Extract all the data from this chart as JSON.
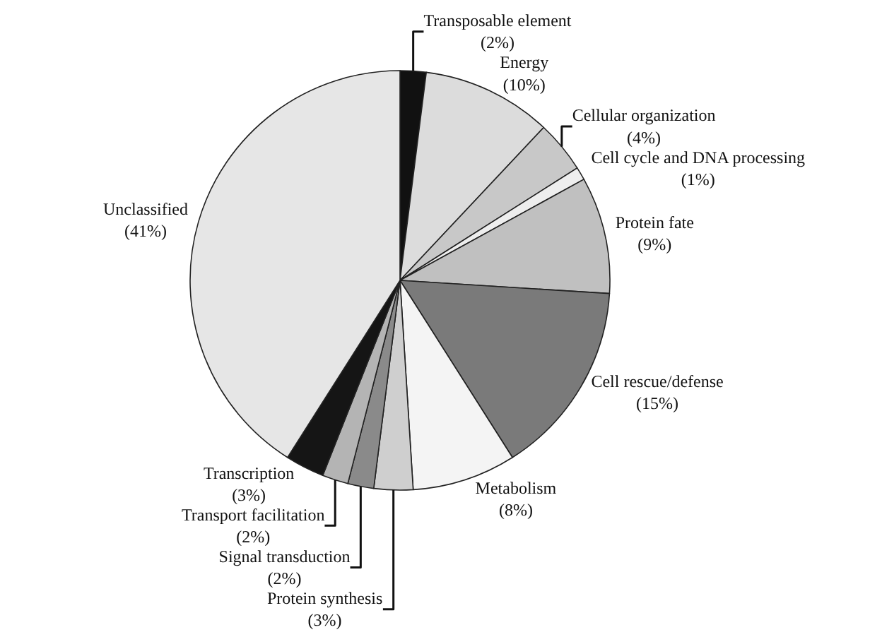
{
  "chart_data": {
    "type": "pie",
    "categories": [
      "Transposable element",
      "Energy",
      "Cellular organization",
      "Cell cycle and DNA processing",
      "Protein fate",
      "Cell rescue/defense",
      "Metabolism",
      "Protein synthesis",
      "Signal transduction",
      "Transport facilitation",
      "Transcription",
      "Unclassified"
    ],
    "values": [
      2,
      10,
      4,
      1,
      9,
      15,
      8,
      3,
      2,
      2,
      3,
      41
    ],
    "value_labels": [
      "(2%)",
      "(10%)",
      "(4%)",
      "(1%)",
      "(9%)",
      "(15%)",
      "(8%)",
      "(3%)",
      "(2%)",
      "(2%)",
      "(3%)",
      "(41%)"
    ],
    "colors": [
      "#111111",
      "#dcdcdc",
      "#c8c8c8",
      "#eeeeee",
      "#c0c0c0",
      "#7a7a7a",
      "#f4f4f4",
      "#cfcfcf",
      "#8a8a8a",
      "#b4b4b4",
      "#151515",
      "#e6e6e6"
    ],
    "legend": false
  }
}
